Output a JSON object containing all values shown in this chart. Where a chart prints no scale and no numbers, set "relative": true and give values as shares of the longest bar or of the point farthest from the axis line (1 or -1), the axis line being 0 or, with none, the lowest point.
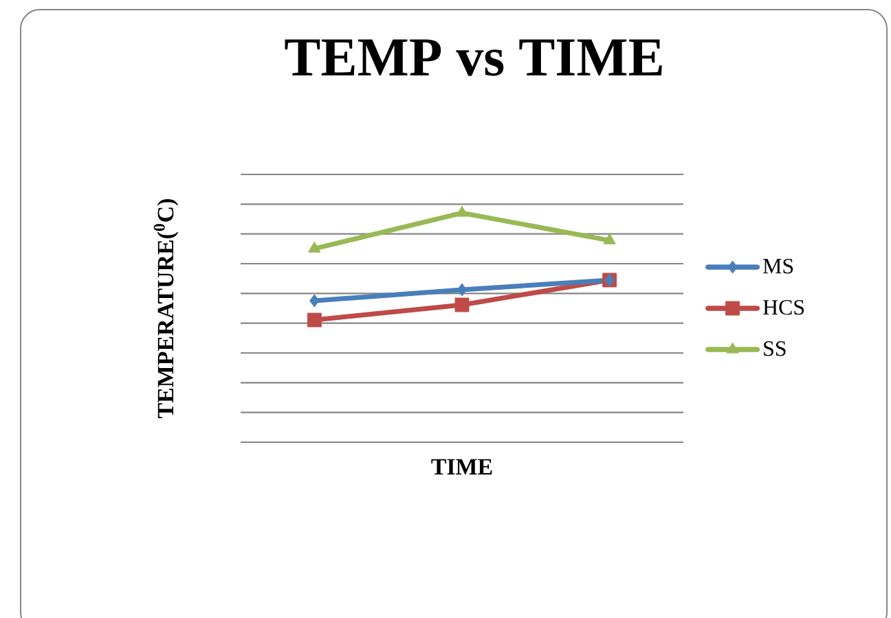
{
  "chart_data": {
    "type": "line",
    "title": "TEMP vs TIME",
    "xlabel": "TIME",
    "ylabel": "TEMPERATURE($^{0}$C)",
    "categories": [
      null,
      null,
      null
    ],
    "relative": true,
    "grid": "y",
    "legend": "right",
    "series": [
      {
        "name": "MS",
        "color": "#4a7ebb",
        "marker": "diamond",
        "values": [
          0.617,
          0.665,
          0.707
        ]
      },
      {
        "name": "HCS",
        "color": "#be4b48",
        "marker": "square",
        "values": [
          0.533,
          0.599,
          0.707
        ]
      },
      {
        "name": "SS",
        "color": "#98b954",
        "marker": "triangle",
        "values": [
          0.844,
          1.0,
          0.88
        ]
      }
    ]
  }
}
